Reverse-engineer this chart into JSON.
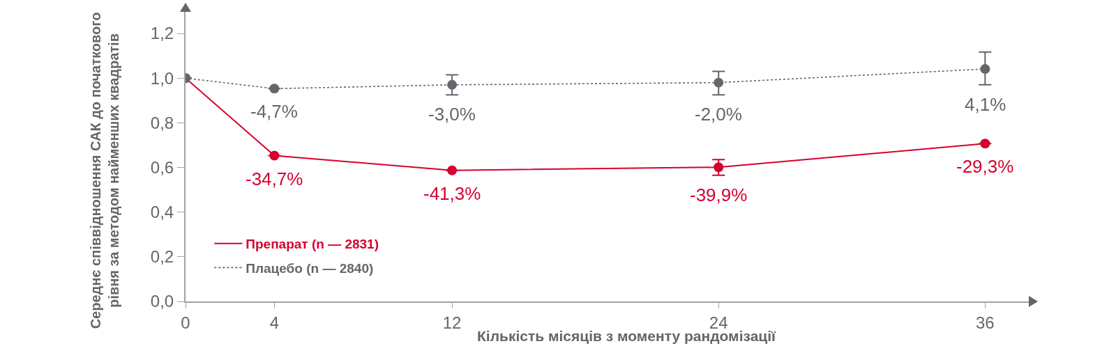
{
  "chart_data": {
    "type": "line",
    "xlabel": "Кількість місяців з моменту рандомізації",
    "ylabel": "Середнє співвідношення САК до початкового\nрівня за методом найменших квадратів",
    "x": [
      0,
      4,
      12,
      24,
      36
    ],
    "xlim": [
      0,
      38
    ],
    "xticks": [
      0,
      4,
      12,
      24,
      36
    ],
    "ylim": [
      0,
      1.3
    ],
    "yticks": [
      {
        "value": 0,
        "label": "0,0"
      },
      {
        "value": 0.2,
        "label": "0,2"
      },
      {
        "value": 0.4,
        "label": "0,4"
      },
      {
        "value": 0.6,
        "label": "0,6"
      },
      {
        "value": 0.8,
        "label": "0,8"
      },
      {
        "value": 1.0,
        "label": "1,0"
      },
      {
        "value": 1.2,
        "label": "1,2"
      }
    ],
    "marker": "circle",
    "legend": "bottom left",
    "series": [
      {
        "name": "Препарат (n — 2831)",
        "color": "#d6002f",
        "line_style": "solid",
        "values": [
          1.0,
          0.653,
          0.587,
          0.601,
          0.707
        ],
        "errors": [
          null,
          null,
          null,
          [
            0.565,
            0.635
          ],
          null
        ]
      },
      {
        "name": "Плацебо (n — 2840)",
        "color": "#63666a",
        "line_style": "dotted",
        "values": [
          1.0,
          0.953,
          0.97,
          0.98,
          1.041
        ],
        "errors": [
          null,
          null,
          [
            0.925,
            1.015
          ],
          [
            0.925,
            1.03
          ],
          [
            0.97,
            1.117
          ]
        ]
      }
    ],
    "annotations": [
      {
        "text": "-34,7%",
        "x": 4,
        "y": 0.653
      },
      {
        "text": "-41,3%",
        "x": 12,
        "y": 0.587
      },
      {
        "text": "-39,9%",
        "x": 24,
        "y": 0.601
      },
      {
        "text": "-29,3%",
        "x": 36,
        "y": 0.707
      },
      {
        "text": "-4,7%",
        "x": 4,
        "y": 0.953
      },
      {
        "text": "-3,0%",
        "x": 12,
        "y": 0.97
      },
      {
        "text": "-2,0%",
        "x": 24,
        "y": 0.98
      },
      {
        "text": "4,1%",
        "x": 36,
        "y": 1.041
      }
    ]
  }
}
